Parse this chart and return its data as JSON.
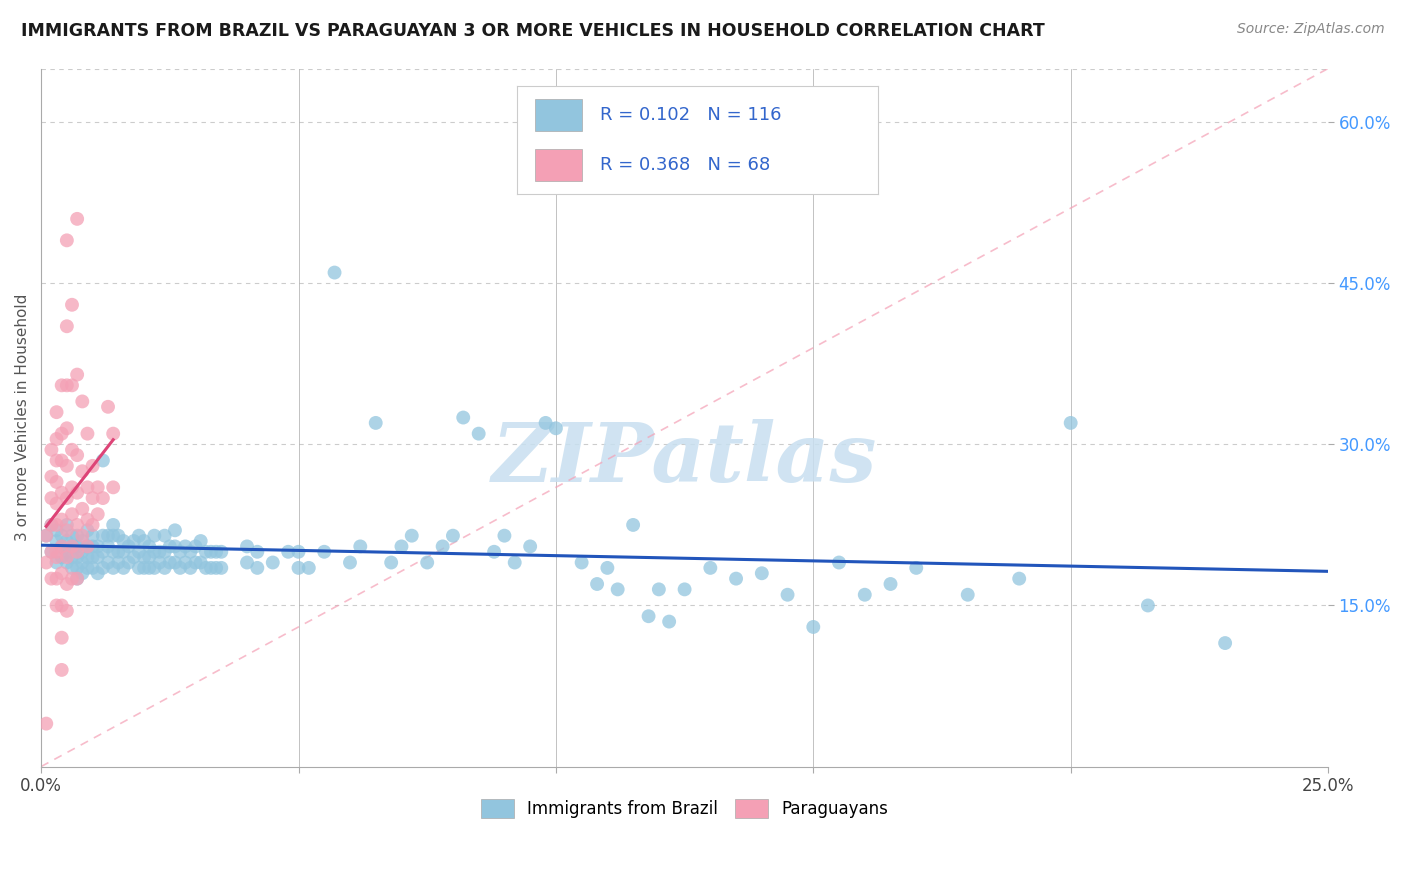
{
  "title": "IMMIGRANTS FROM BRAZIL VS PARAGUAYAN 3 OR MORE VEHICLES IN HOUSEHOLD CORRELATION CHART",
  "source": "Source: ZipAtlas.com",
  "ylabel": "3 or more Vehicles in Household",
  "right_yticks": [
    "60.0%",
    "45.0%",
    "30.0%",
    "15.0%"
  ],
  "right_ytick_vals": [
    0.6,
    0.45,
    0.3,
    0.15
  ],
  "xlim": [
    0.0,
    0.25
  ],
  "ylim": [
    0.0,
    0.65
  ],
  "legend_brazil_r": "0.102",
  "legend_brazil_n": "116",
  "legend_paraguay_r": "0.368",
  "legend_paraguay_n": "68",
  "blue_color": "#92c5de",
  "blue_line_color": "#2255bb",
  "pink_color": "#f4a0b5",
  "pink_line_color": "#dd4477",
  "diag_color": "#f4a0b5",
  "watermark_color": "#c8dff0",
  "background_color": "#ffffff",
  "grid_color": "#cccccc",
  "blue_scatter": [
    [
      0.001,
      0.215
    ],
    [
      0.002,
      0.2
    ],
    [
      0.002,
      0.225
    ],
    [
      0.003,
      0.19
    ],
    [
      0.003,
      0.21
    ],
    [
      0.003,
      0.22
    ],
    [
      0.004,
      0.195
    ],
    [
      0.004,
      0.205
    ],
    [
      0.004,
      0.215
    ],
    [
      0.005,
      0.19
    ],
    [
      0.005,
      0.2
    ],
    [
      0.005,
      0.21
    ],
    [
      0.005,
      0.225
    ],
    [
      0.006,
      0.185
    ],
    [
      0.006,
      0.195
    ],
    [
      0.006,
      0.205
    ],
    [
      0.006,
      0.215
    ],
    [
      0.007,
      0.175
    ],
    [
      0.007,
      0.185
    ],
    [
      0.007,
      0.195
    ],
    [
      0.007,
      0.205
    ],
    [
      0.007,
      0.215
    ],
    [
      0.008,
      0.18
    ],
    [
      0.008,
      0.19
    ],
    [
      0.008,
      0.2
    ],
    [
      0.008,
      0.21
    ],
    [
      0.009,
      0.185
    ],
    [
      0.009,
      0.195
    ],
    [
      0.009,
      0.205
    ],
    [
      0.009,
      0.22
    ],
    [
      0.01,
      0.185
    ],
    [
      0.01,
      0.195
    ],
    [
      0.01,
      0.205
    ],
    [
      0.01,
      0.215
    ],
    [
      0.011,
      0.18
    ],
    [
      0.011,
      0.195
    ],
    [
      0.011,
      0.205
    ],
    [
      0.012,
      0.185
    ],
    [
      0.012,
      0.2
    ],
    [
      0.012,
      0.215
    ],
    [
      0.012,
      0.285
    ],
    [
      0.013,
      0.19
    ],
    [
      0.013,
      0.205
    ],
    [
      0.013,
      0.215
    ],
    [
      0.014,
      0.185
    ],
    [
      0.014,
      0.2
    ],
    [
      0.014,
      0.215
    ],
    [
      0.014,
      0.225
    ],
    [
      0.015,
      0.19
    ],
    [
      0.015,
      0.2
    ],
    [
      0.015,
      0.215
    ],
    [
      0.016,
      0.185
    ],
    [
      0.016,
      0.2
    ],
    [
      0.016,
      0.21
    ],
    [
      0.017,
      0.19
    ],
    [
      0.017,
      0.205
    ],
    [
      0.018,
      0.195
    ],
    [
      0.018,
      0.21
    ],
    [
      0.019,
      0.185
    ],
    [
      0.019,
      0.2
    ],
    [
      0.019,
      0.215
    ],
    [
      0.02,
      0.185
    ],
    [
      0.02,
      0.195
    ],
    [
      0.02,
      0.21
    ],
    [
      0.021,
      0.185
    ],
    [
      0.021,
      0.195
    ],
    [
      0.021,
      0.205
    ],
    [
      0.022,
      0.185
    ],
    [
      0.022,
      0.2
    ],
    [
      0.022,
      0.215
    ],
    [
      0.023,
      0.19
    ],
    [
      0.023,
      0.2
    ],
    [
      0.024,
      0.185
    ],
    [
      0.024,
      0.2
    ],
    [
      0.024,
      0.215
    ],
    [
      0.025,
      0.19
    ],
    [
      0.025,
      0.205
    ],
    [
      0.026,
      0.19
    ],
    [
      0.026,
      0.205
    ],
    [
      0.026,
      0.22
    ],
    [
      0.027,
      0.185
    ],
    [
      0.027,
      0.2
    ],
    [
      0.028,
      0.19
    ],
    [
      0.028,
      0.205
    ],
    [
      0.029,
      0.185
    ],
    [
      0.029,
      0.2
    ],
    [
      0.03,
      0.19
    ],
    [
      0.03,
      0.205
    ],
    [
      0.031,
      0.19
    ],
    [
      0.031,
      0.21
    ],
    [
      0.032,
      0.185
    ],
    [
      0.032,
      0.2
    ],
    [
      0.033,
      0.185
    ],
    [
      0.033,
      0.2
    ],
    [
      0.034,
      0.185
    ],
    [
      0.034,
      0.2
    ],
    [
      0.035,
      0.185
    ],
    [
      0.035,
      0.2
    ],
    [
      0.04,
      0.19
    ],
    [
      0.04,
      0.205
    ],
    [
      0.042,
      0.185
    ],
    [
      0.042,
      0.2
    ],
    [
      0.045,
      0.19
    ],
    [
      0.048,
      0.2
    ],
    [
      0.05,
      0.185
    ],
    [
      0.05,
      0.2
    ],
    [
      0.052,
      0.185
    ],
    [
      0.055,
      0.2
    ],
    [
      0.057,
      0.46
    ],
    [
      0.06,
      0.19
    ],
    [
      0.062,
      0.205
    ],
    [
      0.065,
      0.32
    ],
    [
      0.068,
      0.19
    ],
    [
      0.07,
      0.205
    ],
    [
      0.072,
      0.215
    ],
    [
      0.075,
      0.19
    ],
    [
      0.078,
      0.205
    ],
    [
      0.08,
      0.215
    ],
    [
      0.082,
      0.325
    ],
    [
      0.085,
      0.31
    ],
    [
      0.088,
      0.2
    ],
    [
      0.09,
      0.215
    ],
    [
      0.092,
      0.19
    ],
    [
      0.095,
      0.205
    ],
    [
      0.098,
      0.32
    ],
    [
      0.1,
      0.315
    ],
    [
      0.105,
      0.19
    ],
    [
      0.108,
      0.17
    ],
    [
      0.11,
      0.185
    ],
    [
      0.112,
      0.165
    ],
    [
      0.115,
      0.225
    ],
    [
      0.118,
      0.14
    ],
    [
      0.12,
      0.165
    ],
    [
      0.122,
      0.135
    ],
    [
      0.125,
      0.165
    ],
    [
      0.13,
      0.185
    ],
    [
      0.135,
      0.175
    ],
    [
      0.14,
      0.18
    ],
    [
      0.145,
      0.16
    ],
    [
      0.15,
      0.13
    ],
    [
      0.155,
      0.19
    ],
    [
      0.16,
      0.16
    ],
    [
      0.165,
      0.17
    ],
    [
      0.17,
      0.185
    ],
    [
      0.18,
      0.16
    ],
    [
      0.19,
      0.175
    ],
    [
      0.2,
      0.32
    ],
    [
      0.215,
      0.15
    ],
    [
      0.23,
      0.115
    ]
  ],
  "pink_scatter": [
    [
      0.001,
      0.215
    ],
    [
      0.001,
      0.19
    ],
    [
      0.001,
      0.04
    ],
    [
      0.002,
      0.295
    ],
    [
      0.002,
      0.27
    ],
    [
      0.002,
      0.25
    ],
    [
      0.002,
      0.225
    ],
    [
      0.002,
      0.2
    ],
    [
      0.002,
      0.175
    ],
    [
      0.003,
      0.33
    ],
    [
      0.003,
      0.305
    ],
    [
      0.003,
      0.285
    ],
    [
      0.003,
      0.265
    ],
    [
      0.003,
      0.245
    ],
    [
      0.003,
      0.225
    ],
    [
      0.003,
      0.2
    ],
    [
      0.003,
      0.175
    ],
    [
      0.003,
      0.15
    ],
    [
      0.003,
      0.195
    ],
    [
      0.004,
      0.355
    ],
    [
      0.004,
      0.31
    ],
    [
      0.004,
      0.285
    ],
    [
      0.004,
      0.255
    ],
    [
      0.004,
      0.23
    ],
    [
      0.004,
      0.205
    ],
    [
      0.004,
      0.18
    ],
    [
      0.004,
      0.15
    ],
    [
      0.004,
      0.12
    ],
    [
      0.004,
      0.09
    ],
    [
      0.005,
      0.49
    ],
    [
      0.005,
      0.41
    ],
    [
      0.005,
      0.355
    ],
    [
      0.005,
      0.315
    ],
    [
      0.005,
      0.28
    ],
    [
      0.005,
      0.25
    ],
    [
      0.005,
      0.22
    ],
    [
      0.005,
      0.195
    ],
    [
      0.005,
      0.17
    ],
    [
      0.005,
      0.145
    ],
    [
      0.006,
      0.43
    ],
    [
      0.006,
      0.355
    ],
    [
      0.006,
      0.295
    ],
    [
      0.006,
      0.26
    ],
    [
      0.006,
      0.235
    ],
    [
      0.006,
      0.205
    ],
    [
      0.006,
      0.175
    ],
    [
      0.007,
      0.51
    ],
    [
      0.007,
      0.365
    ],
    [
      0.007,
      0.29
    ],
    [
      0.007,
      0.255
    ],
    [
      0.007,
      0.225
    ],
    [
      0.007,
      0.2
    ],
    [
      0.007,
      0.175
    ],
    [
      0.008,
      0.34
    ],
    [
      0.008,
      0.275
    ],
    [
      0.008,
      0.24
    ],
    [
      0.008,
      0.215
    ],
    [
      0.009,
      0.31
    ],
    [
      0.009,
      0.26
    ],
    [
      0.009,
      0.23
    ],
    [
      0.009,
      0.205
    ],
    [
      0.01,
      0.28
    ],
    [
      0.01,
      0.25
    ],
    [
      0.01,
      0.225
    ],
    [
      0.011,
      0.26
    ],
    [
      0.011,
      0.235
    ],
    [
      0.012,
      0.25
    ],
    [
      0.013,
      0.335
    ],
    [
      0.014,
      0.31
    ],
    [
      0.014,
      0.26
    ]
  ],
  "watermark": "ZIPatlas"
}
